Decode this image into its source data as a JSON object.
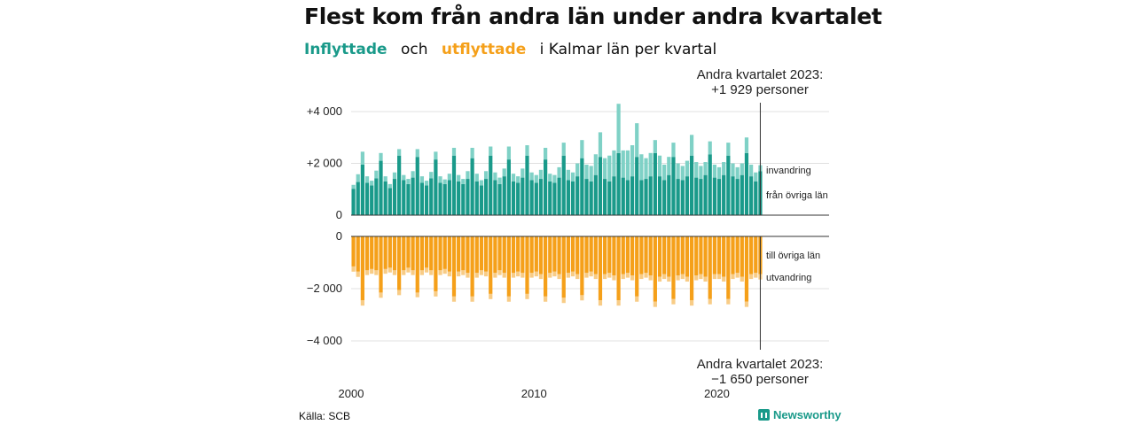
{
  "title": "Flest kom från andra län under andra kvartalet",
  "subtitle": {
    "in_word": "Inflyttade",
    "and_word": "och",
    "out_word": "utflyttade",
    "rest": "i Kalmar län per kvartal"
  },
  "colors": {
    "in_dark": "#1a9a8a",
    "in_light": "#7fd1c6",
    "out_dark": "#f5a01a",
    "out_light": "#f8cc86",
    "axis": "#333333",
    "grid": "#e0e0e0"
  },
  "source": "Källa: SCB",
  "brand": "Newsworthy",
  "chart_data": [
    {
      "type": "bar",
      "stacked": true,
      "panel": "inflyttade",
      "x_start": "2000 Q1",
      "x_end": "2023 Q2",
      "x_ticks": [
        "2000",
        "2010",
        "2020"
      ],
      "y_ticks": [
        "+4 000",
        "+2 000",
        "0"
      ],
      "y_tick_values": [
        4000,
        2000,
        0
      ],
      "ylim": [
        0,
        4400
      ],
      "series_labels": [
        "invandring",
        "från övriga län"
      ],
      "annotation": [
        "Andra kvartalet 2023:",
        "+1 929 personer"
      ],
      "annotation_value": 1929,
      "base_values": [
        1020,
        1280,
        1950,
        1250,
        1150,
        1420,
        2100,
        1300,
        1050,
        1400,
        2300,
        1350,
        1200,
        1450,
        2250,
        1250,
        1150,
        1420,
        2150,
        1250,
        1200,
        1350,
        2300,
        1300,
        1200,
        1400,
        2200,
        1300,
        1150,
        1400,
        2300,
        1350,
        1200,
        1500,
        2150,
        1300,
        1250,
        1450,
        2300,
        1350,
        1250,
        1400,
        2150,
        1300,
        1250,
        1450,
        2300,
        1350,
        1300,
        1500,
        2200,
        1400,
        1300,
        1550,
        2250,
        1400,
        1300,
        1500,
        2400,
        1450,
        1350,
        1500,
        2250,
        1350,
        1400,
        1500,
        2400,
        1500,
        1350,
        1550,
        2250,
        1400,
        1350,
        1500,
        2300,
        1450,
        1400,
        1550,
        2350,
        1450,
        1400,
        1550,
        2300,
        1500,
        1400,
        1550,
        2400,
        1500,
        1300,
        1700
      ],
      "extra_values": [
        150,
        300,
        500,
        250,
        180,
        300,
        300,
        200,
        150,
        250,
        250,
        200,
        200,
        250,
        300,
        250,
        180,
        250,
        300,
        250,
        180,
        250,
        300,
        250,
        200,
        300,
        400,
        300,
        200,
        300,
        350,
        300,
        250,
        300,
        500,
        300,
        250,
        350,
        400,
        300,
        300,
        350,
        450,
        300,
        300,
        400,
        500,
        400,
        350,
        500,
        700,
        550,
        600,
        800,
        950,
        800,
        1000,
        1000,
        1900,
        1050,
        1150,
        1200,
        1300,
        1000,
        800,
        900,
        500,
        800,
        600,
        700,
        550,
        600,
        550,
        600,
        800,
        600,
        500,
        500,
        500,
        500,
        450,
        500,
        500,
        500,
        450,
        450,
        600,
        450,
        350,
        229
      ]
    },
    {
      "type": "bar",
      "stacked": true,
      "panel": "utflyttade",
      "y_ticks": [
        "0",
        "−2 000",
        "−4 000"
      ],
      "y_tick_values": [
        0,
        -2000,
        -4000
      ],
      "ylim": [
        -4300,
        0
      ],
      "series_labels": [
        "till övriga län",
        "utvandring"
      ],
      "annotation": [
        "Andra kvartalet 2023:",
        "−1 650 personer"
      ],
      "annotation_value": -1650,
      "base_values": [
        1150,
        1350,
        2450,
        1300,
        1250,
        1300,
        2150,
        1250,
        1200,
        1300,
        2050,
        1300,
        1200,
        1300,
        2150,
        1300,
        1200,
        1300,
        2100,
        1300,
        1250,
        1350,
        2300,
        1350,
        1300,
        1400,
        2300,
        1400,
        1300,
        1350,
        2200,
        1400,
        1300,
        1400,
        2300,
        1400,
        1350,
        1400,
        2200,
        1400,
        1350,
        1450,
        2300,
        1400,
        1350,
        1450,
        2350,
        1400,
        1350,
        1450,
        2250,
        1400,
        1350,
        1450,
        2450,
        1450,
        1400,
        1500,
        2450,
        1450,
        1400,
        1500,
        2300,
        1450,
        1400,
        1500,
        2500,
        1550,
        1450,
        1550,
        2400,
        1500,
        1450,
        1550,
        2450,
        1500,
        1450,
        1550,
        2400,
        1450,
        1450,
        1550,
        2400,
        1450,
        1400,
        1550,
        2500,
        1450,
        1400,
        1450
      ],
      "extra_values": [
        200,
        200,
        200,
        180,
        180,
        180,
        200,
        180,
        180,
        180,
        200,
        180,
        180,
        180,
        180,
        180,
        180,
        180,
        200,
        180,
        180,
        180,
        200,
        180,
        180,
        180,
        200,
        180,
        180,
        180,
        200,
        180,
        180,
        180,
        200,
        180,
        180,
        180,
        200,
        180,
        180,
        180,
        200,
        180,
        180,
        180,
        200,
        180,
        180,
        180,
        200,
        180,
        180,
        180,
        200,
        180,
        180,
        180,
        200,
        180,
        180,
        180,
        200,
        180,
        180,
        180,
        200,
        180,
        180,
        180,
        200,
        180,
        180,
        180,
        200,
        180,
        180,
        180,
        200,
        180,
        180,
        180,
        200,
        180,
        180,
        180,
        200,
        180,
        180,
        200
      ]
    }
  ]
}
